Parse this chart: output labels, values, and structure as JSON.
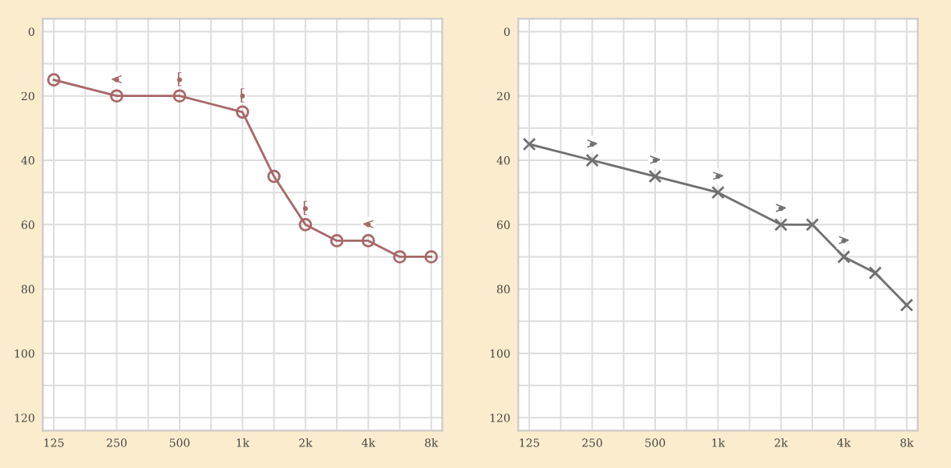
{
  "chart_data": [
    {
      "type": "line",
      "categories": [
        "125",
        null,
        "250",
        null,
        "500",
        null,
        "1k",
        null,
        "2k",
        null,
        "4k",
        null,
        "8k"
      ],
      "series": [
        {
          "color": "#a86868",
          "values": [
            15,
            null,
            20,
            null,
            20,
            null,
            25,
            45,
            60,
            65,
            65,
            70,
            70
          ]
        },
        {
          "type": "scatter",
          "marker": "circle",
          "color": "#a86868",
          "values": [
            null,
            null,
            15,
            null,
            15,
            null,
            20,
            null,
            55,
            null,
            60,
            null,
            null
          ],
          "value_labels": [
            null,
            null,
            "<",
            null,
            "[",
            null,
            "[",
            null,
            "[",
            null,
            "<",
            null,
            null
          ]
        }
      ],
      "marker": "circle",
      "ylim": [
        124,
        -4
      ],
      "yticks": [
        0,
        {
          "value": 10,
          "label": null
        },
        20,
        {
          "value": 30,
          "label": null
        },
        40,
        {
          "value": 50,
          "label": null
        },
        60,
        {
          "value": 70,
          "label": null
        },
        80,
        {
          "value": 90,
          "label": null
        },
        100,
        {
          "value": 110,
          "label": null
        },
        120
      ],
      "grid": true
    },
    {
      "type": "line",
      "categories": [
        "125",
        null,
        "250",
        null,
        "500",
        null,
        "1k",
        null,
        "2k",
        null,
        "4k",
        null,
        "8k"
      ],
      "series": [
        {
          "color": "#707070",
          "values": [
            35,
            null,
            40,
            null,
            45,
            null,
            50,
            null,
            60,
            60,
            70,
            75,
            85
          ]
        },
        {
          "type": "scatter",
          "marker": "circle",
          "color": "#707070",
          "values": [
            null,
            null,
            35,
            null,
            40,
            null,
            45,
            null,
            55,
            null,
            65,
            null,
            null
          ],
          "value_labels": [
            null,
            null,
            ">",
            null,
            ">",
            null,
            ">",
            null,
            ">",
            null,
            ">",
            null,
            null
          ]
        }
      ],
      "marker": "cross",
      "ylim": [
        124,
        -4
      ],
      "yticks": [
        0,
        {
          "value": 10,
          "label": null
        },
        20,
        {
          "value": 30,
          "label": null
        },
        40,
        {
          "value": 50,
          "label": null
        },
        60,
        {
          "value": 70,
          "label": null
        },
        80,
        {
          "value": 90,
          "label": null
        },
        100,
        {
          "value": 110,
          "label": null
        },
        120
      ],
      "grid": true
    }
  ]
}
